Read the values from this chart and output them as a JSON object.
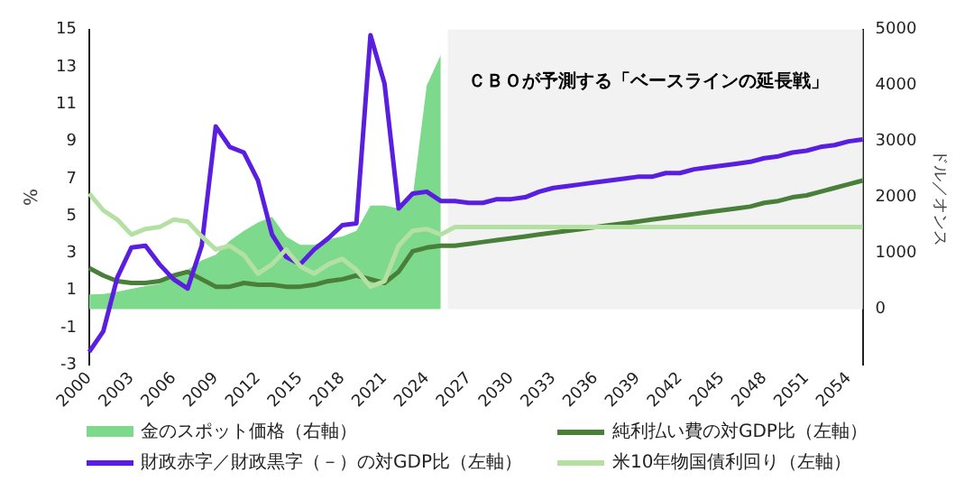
{
  "chart_data": {
    "type": "line",
    "categories": [
      "2000",
      null,
      null,
      "2003",
      null,
      null,
      "2006",
      null,
      null,
      "2009",
      null,
      null,
      "2012",
      null,
      null,
      "2015",
      null,
      null,
      "2018",
      null,
      null,
      "2021",
      null,
      null,
      "2024",
      null,
      null,
      "2027",
      null,
      null,
      "2030",
      null,
      null,
      "2033",
      null,
      null,
      "2036",
      null,
      null,
      "2039",
      null,
      null,
      "2042",
      null,
      null,
      "2045",
      null,
      null,
      "2048",
      null,
      null,
      "2051",
      null,
      null,
      "2054",
      null
    ],
    "ylabel": "%",
    "y2label": "ドル／オンス",
    "ylim": [
      -3,
      15
    ],
    "yticks": [
      -3,
      -1,
      1,
      3,
      5,
      7,
      9,
      11,
      13,
      15
    ],
    "y2lim": [
      -1000,
      5000
    ],
    "y2ticks": [
      0,
      1000,
      2000,
      3000,
      4000,
      5000
    ],
    "grid": false,
    "legend": "bottom",
    "marker": "none",
    "annotations": [
      "ＣＢＯが予測する「ベースラインの延長戦」"
    ],
    "series": [
      {
        "name": "金のスポット価格（右軸）",
        "type": "area",
        "axis": "y2",
        "color": "#7dd98c",
        "values": [
          260,
          270,
          310,
          360,
          410,
          450,
          600,
          700,
          870,
          970,
          1220,
          1400,
          1550,
          1650,
          1300,
          1150,
          1150,
          1250,
          1300,
          1400,
          1850,
          1850,
          1800,
          2000,
          4000,
          4550,
          null,
          null,
          null,
          null,
          null,
          null,
          null,
          null,
          null,
          null,
          null,
          null,
          null,
          null,
          null,
          null,
          null,
          null,
          null,
          null,
          null,
          null,
          null,
          null,
          null,
          null,
          null,
          null,
          null,
          null
        ]
      },
      {
        "name": "純利払い費の対GDP比（左軸）",
        "type": "line",
        "color": "#4a7f3a",
        "values": [
          2.2,
          1.8,
          1.5,
          1.4,
          1.4,
          1.5,
          1.8,
          2.0,
          1.6,
          1.2,
          1.2,
          1.4,
          1.3,
          1.3,
          1.2,
          1.2,
          1.3,
          1.5,
          1.6,
          1.8,
          1.6,
          1.4,
          2.0,
          3.1,
          3.3,
          3.4,
          3.4,
          3.5,
          3.6,
          3.7,
          3.8,
          3.9,
          4.0,
          4.1,
          4.2,
          4.3,
          4.4,
          4.5,
          4.6,
          4.7,
          4.8,
          4.9,
          5.0,
          5.1,
          5.2,
          5.3,
          5.4,
          5.5,
          5.7,
          5.8,
          6.0,
          6.1,
          6.3,
          6.5,
          6.7,
          6.9
        ]
      },
      {
        "name": "財政赤字／財政黒字（－）の対GDP比（左軸）",
        "type": "line",
        "color": "#5a1ee0",
        "values": [
          -2.3,
          -1.2,
          1.7,
          3.3,
          3.4,
          2.4,
          1.6,
          1.1,
          3.4,
          9.8,
          8.7,
          8.4,
          6.9,
          4.0,
          2.8,
          2.4,
          3.2,
          3.8,
          4.5,
          4.6,
          14.7,
          12.1,
          5.4,
          6.2,
          6.3,
          5.8,
          5.8,
          5.7,
          5.7,
          5.9,
          5.9,
          6.0,
          6.3,
          6.5,
          6.6,
          6.7,
          6.8,
          6.9,
          7.0,
          7.1,
          7.1,
          7.3,
          7.3,
          7.5,
          7.6,
          7.7,
          7.8,
          7.9,
          8.1,
          8.2,
          8.4,
          8.5,
          8.7,
          8.8,
          9.0,
          9.1
        ]
      },
      {
        "name": "米10年物国債利回り（左軸）",
        "type": "line",
        "color": "#b5e0a3",
        "values": [
          6.2,
          5.3,
          4.8,
          4.0,
          4.3,
          4.4,
          4.8,
          4.7,
          3.9,
          3.2,
          3.4,
          2.9,
          1.9,
          2.4,
          3.2,
          2.3,
          1.9,
          2.4,
          2.7,
          2.1,
          1.2,
          1.5,
          3.4,
          4.2,
          4.3,
          4.0,
          4.4,
          4.4,
          4.4,
          4.4,
          4.4,
          4.4,
          4.4,
          4.4,
          4.4,
          4.4,
          4.4,
          4.4,
          4.4,
          4.4,
          4.4,
          4.4,
          4.4,
          4.4,
          4.4,
          4.4,
          4.4,
          4.4,
          4.4,
          4.4,
          4.4,
          4.4,
          4.4,
          4.4,
          4.4,
          4.4
        ]
      }
    ]
  }
}
